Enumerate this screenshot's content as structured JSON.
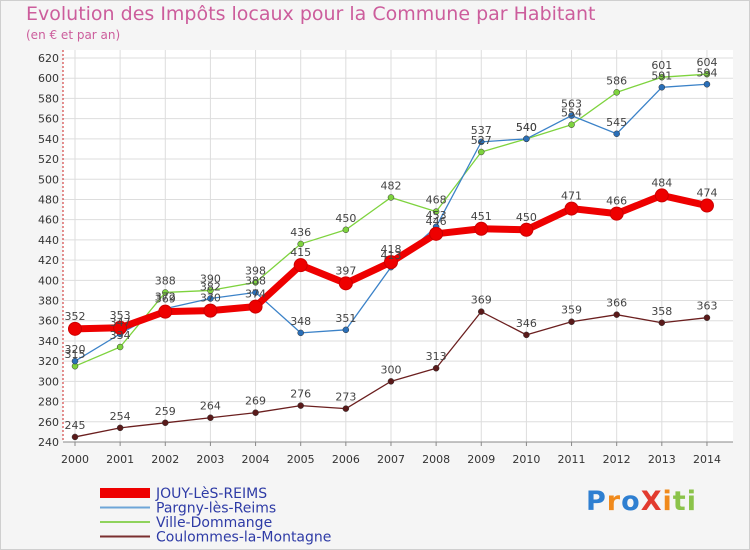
{
  "chart_data": {
    "type": "line",
    "title": "Evolution des Impôts locaux pour la Commune par Habitant",
    "subtitle": "(en € et par an)",
    "xlabel": "",
    "ylabel": "",
    "x": [
      "2000",
      "2001",
      "2002",
      "2003",
      "2004",
      "2005",
      "2006",
      "2007",
      "2008",
      "2009",
      "2010",
      "2011",
      "2012",
      "2013",
      "2014"
    ],
    "yticks": [
      240,
      260,
      280,
      300,
      320,
      340,
      360,
      380,
      400,
      420,
      440,
      460,
      480,
      500,
      520,
      540,
      560,
      580,
      600,
      620
    ],
    "ylim": [
      240,
      620
    ],
    "grid": true,
    "legend": "bottom-left",
    "series": [
      {
        "name": "Coulommes-la-Montagne",
        "color": "#6b1f1f",
        "values": [
          245,
          254,
          259,
          264,
          269,
          276,
          273,
          300,
          313,
          369,
          346,
          359,
          366,
          358,
          363
        ]
      },
      {
        "name": "Ville-Dommange",
        "color": "#7ed33e",
        "values": [
          315,
          334,
          388,
          390,
          398,
          436,
          450,
          482,
          468,
          527,
          540,
          554,
          586,
          601,
          604
        ]
      },
      {
        "name": "Pargny-lès-Reims",
        "color": "#3b82c8",
        "values": [
          320,
          347,
          372,
          382,
          388,
          348,
          351,
          413,
          453,
          537,
          540,
          563,
          545,
          591,
          594
        ]
      },
      {
        "name": "JOUY-LèS-REIMS",
        "color": "#ee0000",
        "values": [
          352,
          353,
          369,
          370,
          374,
          415,
          397,
          418,
          446,
          451,
          450,
          471,
          466,
          484,
          474
        ]
      }
    ],
    "value_labels": [
      [
        "245",
        "254",
        "259",
        "264",
        "269",
        "276",
        "273",
        "300",
        "313",
        "369",
        "346",
        "359",
        "366",
        "358",
        "363"
      ],
      [
        "315",
        "334",
        "388",
        "390",
        "398",
        "436",
        "450",
        "482",
        "468",
        "527",
        "540",
        "554",
        "586",
        "601",
        "604"
      ],
      [
        "320",
        "347",
        "372",
        "382",
        "388",
        "348",
        "351",
        "413",
        "453",
        "537",
        "540",
        "563",
        "545",
        "591",
        "594"
      ],
      [
        "352",
        "353",
        "369",
        "370",
        "374",
        "415",
        "397",
        "418",
        "446",
        "451",
        "450",
        "471",
        "466",
        "484",
        "474"
      ]
    ]
  },
  "legend": [
    {
      "label": "JOUY-LèS-REIMS",
      "color": "#ee0000"
    },
    {
      "label": "Pargny-lès-Reims",
      "color": "#6ea6d8"
    },
    {
      "label": "Ville-Dommange",
      "color": "#8fd35c"
    },
    {
      "label": "Coulommes-la-Montagne",
      "color": "#7a3030"
    }
  ],
  "logo": {
    "text": "ProXiti",
    "colors": [
      "#2e7fd1",
      "#f08a1c",
      "#2e7fd1",
      "#e23a2e",
      "#f08a1c",
      "#8bc34a",
      "#8bc34a"
    ]
  }
}
